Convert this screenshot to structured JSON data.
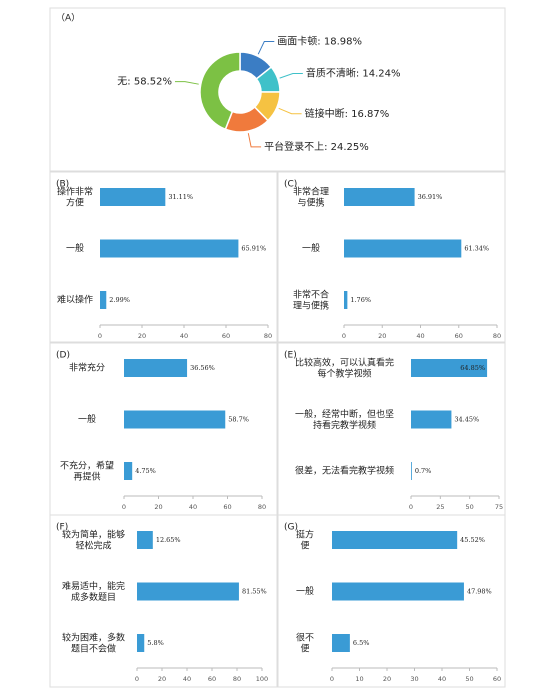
{
  "chart_data": [
    {
      "type": "donut",
      "title": "（A）",
      "values": [
        18.98,
        14.24,
        16.87,
        24.25,
        58.52
      ],
      "value_labels": [
        "画面卡顿: 18.98%",
        "音质不清晰: 14.24%",
        "链接中断: 16.87%",
        "平台登录不上: 24.25%",
        "无: 58.52%"
      ],
      "colors": [
        "#3b7dc4",
        "#3fc1c9",
        "#f5c242",
        "#f07a3c",
        "#7cc144"
      ]
    },
    {
      "type": "hbar",
      "title": "(B)",
      "categories": [
        "操作非常\n方便",
        "一般",
        "难以操作"
      ],
      "values": [
        31.11,
        65.91,
        2.99
      ],
      "value_labels": [
        "31.11%",
        "65.91%",
        "2.99%"
      ],
      "color": "#3a9bd5",
      "xlim": [
        0,
        80
      ],
      "xticks": [
        0,
        20,
        40,
        60,
        80
      ]
    },
    {
      "type": "hbar",
      "title": "(C)",
      "categories": [
        "非常合理\n与便携",
        "一般",
        "非常不合\n理与便携"
      ],
      "values": [
        36.91,
        61.34,
        1.76
      ],
      "value_labels": [
        "36.91%",
        "61.34%",
        "1.76%"
      ],
      "color": "#3a9bd5",
      "xlim": [
        0,
        80
      ],
      "xticks": [
        0,
        20,
        40,
        60,
        80
      ]
    },
    {
      "type": "hbar",
      "title": "(D)",
      "categories": [
        "非常充分",
        "一般",
        "不充分，希望\n再提供"
      ],
      "values": [
        36.56,
        58.7,
        4.75
      ],
      "value_labels": [
        "36.56%",
        "58.7%",
        "4.75%"
      ],
      "color": "#3a9bd5",
      "xlim": [
        0,
        80
      ],
      "xticks": [
        0,
        20,
        40,
        60,
        80
      ]
    },
    {
      "type": "hbar",
      "title": "(E)",
      "categories": [
        "比较高效，可以认真看完\n每个教学视频",
        "一般，经常中断，但也坚\n持看完教学视频",
        "很差，无法看完教学视频"
      ],
      "values": [
        64.85,
        34.45,
        0.7
      ],
      "value_labels": [
        "64.85%",
        "34.45%",
        "0.7%"
      ],
      "color": "#3a9bd5",
      "xlim": [
        0,
        75
      ],
      "xticks": [
        0,
        25,
        50,
        75
      ]
    },
    {
      "type": "hbar",
      "title": "(F)",
      "categories": [
        "较为简单，能够\n轻松完成",
        "难易适中，能完\n成多数题目",
        "较为困难，多数\n题目不会做"
      ],
      "values": [
        12.65,
        81.55,
        5.8
      ],
      "value_labels": [
        "12.65%",
        "81.55%",
        "5.8%"
      ],
      "color": "#3a9bd5",
      "xlim": [
        0,
        100
      ],
      "xticks": [
        0,
        20,
        40,
        60,
        80,
        100
      ]
    },
    {
      "type": "hbar",
      "title": "(G)",
      "categories": [
        "挺方\n便",
        "一般",
        "很不\n便"
      ],
      "values": [
        45.52,
        47.98,
        6.5
      ],
      "value_labels": [
        "45.52%",
        "47.98%",
        "6.5%"
      ],
      "color": "#3a9bd5",
      "xlim": [
        0,
        60
      ],
      "xticks": [
        0,
        10,
        20,
        30,
        40,
        50,
        60
      ]
    }
  ]
}
